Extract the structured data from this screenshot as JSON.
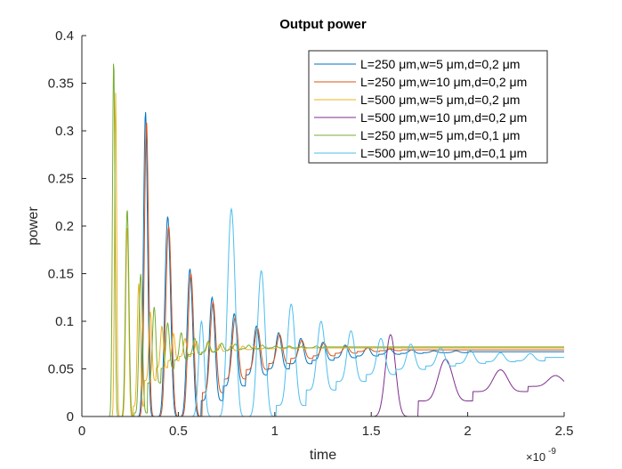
{
  "chart_data": {
    "type": "line",
    "title": "Output power",
    "xlabel": "time",
    "ylabel": "power",
    "xlim": [
      0,
      2.5e-09
    ],
    "ylim": [
      0,
      0.4
    ],
    "x_exponent_label": "×10",
    "x_exponent_power": "-9",
    "xticks": [
      0,
      0.5,
      1,
      1.5,
      2,
      2.5
    ],
    "xtick_labels": [
      "0",
      "0.5",
      "1",
      "1.5",
      "2",
      "2.5"
    ],
    "yticks": [
      0,
      0.05,
      0.1,
      0.15,
      0.2,
      0.25,
      0.3,
      0.35,
      0.4
    ],
    "ytick_labels": [
      "0",
      "0.05",
      "0.1",
      "0.15",
      "0.2",
      "0.25",
      "0.3",
      "0.35",
      "0.4"
    ],
    "grid": false,
    "legend_position": "top-right",
    "series": [
      {
        "name": "L=250 μm,w=5 μm,d=0,2 μm",
        "color": "#0072bd",
        "onset": 0.33,
        "baseline": 0.068,
        "period": 0.115,
        "decay": 0.35,
        "peaks": [
          0.32,
          0.21,
          0.155,
          0.125,
          0.108,
          0.095,
          0.088,
          0.082,
          0.078,
          0.075,
          0.073,
          0.071,
          0.07,
          0.069,
          0.069,
          0.068,
          0.068,
          0.068
        ],
        "trough_fraction": 0.0
      },
      {
        "name": "L=250 μm,w=10 μm,d=0,2 μm",
        "color": "#d95319",
        "onset": 0.335,
        "baseline": 0.07,
        "period": 0.115,
        "decay": 0.35,
        "peaks": [
          0.31,
          0.2,
          0.15,
          0.12,
          0.104,
          0.093,
          0.086,
          0.08,
          0.077,
          0.074,
          0.072,
          0.071,
          0.07,
          0.07,
          0.07
        ],
        "trough_fraction": 0.0
      },
      {
        "name": "L=500 μm,w=5 μm,d=0,2 μm",
        "color": "#edb120",
        "onset": 0.175,
        "baseline": 0.072,
        "period": 0.06,
        "decay": 0.2,
        "peaks": [
          0.34,
          0.2,
          0.14,
          0.11,
          0.095,
          0.087,
          0.082,
          0.079,
          0.077,
          0.076,
          0.075,
          0.074,
          0.074,
          0.073,
          0.073,
          0.073,
          0.073,
          0.072,
          0.072,
          0.072,
          0.072,
          0.072,
          0.072,
          0.072,
          0.072,
          0.072,
          0.072,
          0.072,
          0.072,
          0.072,
          0.072,
          0.072,
          0.072,
          0.072,
          0.072,
          0.072,
          0.072
        ],
        "trough_fraction": 0.0
      },
      {
        "name": "L=500 μm,w=10 μm,d=0,2 μm",
        "color": "#7e2f8e",
        "onset": 1.6,
        "baseline": 0.037,
        "period": 0.285,
        "decay": 0.6,
        "peaks": [
          0.086,
          0.06,
          0.049,
          0.043
        ],
        "trough_fraction": 0.0
      },
      {
        "name": "L=250 μm,w=5 μm,d=0,1 μm",
        "color": "#77ac30",
        "onset": 0.165,
        "baseline": 0.073,
        "period": 0.07,
        "decay": 0.2,
        "peaks": [
          0.376,
          0.218,
          0.15,
          0.115,
          0.098,
          0.088,
          0.082,
          0.079,
          0.077,
          0.076,
          0.075,
          0.075,
          0.074,
          0.074,
          0.074,
          0.074,
          0.073,
          0.073,
          0.073,
          0.073,
          0.073,
          0.073,
          0.073,
          0.073,
          0.073,
          0.073,
          0.073,
          0.073,
          0.073,
          0.073,
          0.073,
          0.073
        ],
        "trough_fraction": 0.0
      },
      {
        "name": "L=500 μm,w=10 μm,d=0,1 μm",
        "color": "#4dbeee",
        "onset": 0.62,
        "baseline": 0.062,
        "period": 0.155,
        "decay": 0.6,
        "peaks": [
          0.1,
          0.218,
          0.153,
          0.118,
          0.1,
          0.09,
          0.082,
          0.076,
          0.072,
          0.069,
          0.067,
          0.066
        ],
        "trough_fraction": 0.0
      }
    ]
  }
}
